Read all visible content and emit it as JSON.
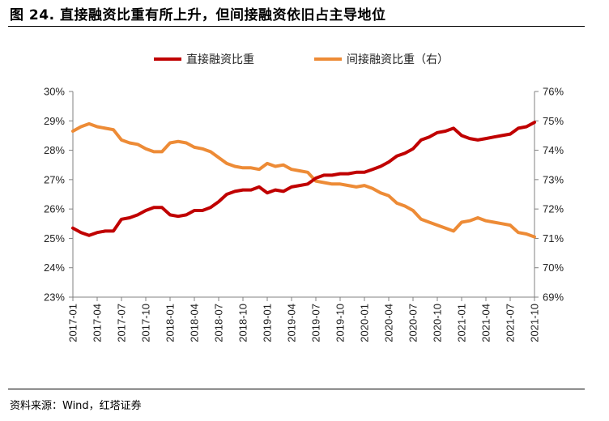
{
  "figure": {
    "title": "图 24. 直接融资比重有所上升，但间接融资依旧占主导地位",
    "source": "资料来源：Wind，红塔证券"
  },
  "colors": {
    "direct": "#c00000",
    "indirect": "#ed8b36",
    "axis": "#808080"
  },
  "chart_data": {
    "type": "line",
    "title": "",
    "legend_position": "top-center",
    "x_tick_labels": [
      "2017-01",
      "2017-04",
      "2017-07",
      "2017-10",
      "2018-01",
      "2018-04",
      "2018-07",
      "2018-10",
      "2019-01",
      "2019-04",
      "2019-07",
      "2019-10",
      "2020-01",
      "2020-04",
      "2020-07",
      "2020-10",
      "2021-01",
      "2021-04",
      "2021-07",
      "2021-10"
    ],
    "x_label_step": 3,
    "y_left": {
      "min": 23,
      "max": 30,
      "step": 1,
      "unit": "%",
      "labels": [
        "23%",
        "24%",
        "25%",
        "26%",
        "27%",
        "28%",
        "29%",
        "30%"
      ]
    },
    "y_right": {
      "min": 69,
      "max": 76,
      "step": 1,
      "unit": "%",
      "labels": [
        "69%",
        "70%",
        "71%",
        "72%",
        "73%",
        "74%",
        "75%",
        "76%"
      ]
    },
    "series": [
      {
        "name": "直接融资比重",
        "axis": "left",
        "values": [
          25.35,
          25.2,
          25.1,
          25.2,
          25.25,
          25.25,
          25.65,
          25.7,
          25.8,
          25.95,
          26.05,
          26.05,
          25.8,
          25.75,
          25.8,
          25.95,
          25.95,
          26.05,
          26.25,
          26.5,
          26.6,
          26.65,
          26.65,
          26.75,
          26.55,
          26.65,
          26.6,
          26.75,
          26.8,
          26.85,
          27.05,
          27.15,
          27.15,
          27.2,
          27.2,
          27.25,
          27.25,
          27.35,
          27.45,
          27.6,
          27.8,
          27.9,
          28.05,
          28.35,
          28.45,
          28.6,
          28.65,
          28.75,
          28.5,
          28.4,
          28.35,
          28.4,
          28.45,
          28.5,
          28.55,
          28.75,
          28.8,
          28.95
        ]
      },
      {
        "name": "间接融资比重（右）",
        "axis": "right",
        "values": [
          74.65,
          74.8,
          74.9,
          74.8,
          74.75,
          74.7,
          74.35,
          74.25,
          74.2,
          74.05,
          73.95,
          73.95,
          74.25,
          74.3,
          74.25,
          74.1,
          74.05,
          73.95,
          73.75,
          73.55,
          73.45,
          73.4,
          73.4,
          73.35,
          73.55,
          73.45,
          73.5,
          73.35,
          73.3,
          73.25,
          72.95,
          72.9,
          72.85,
          72.85,
          72.8,
          72.75,
          72.8,
          72.7,
          72.55,
          72.45,
          72.2,
          72.1,
          71.95,
          71.65,
          71.55,
          71.45,
          71.35,
          71.25,
          71.55,
          71.6,
          71.7,
          71.6,
          71.55,
          71.5,
          71.45,
          71.2,
          71.15,
          71.05
        ]
      }
    ]
  }
}
